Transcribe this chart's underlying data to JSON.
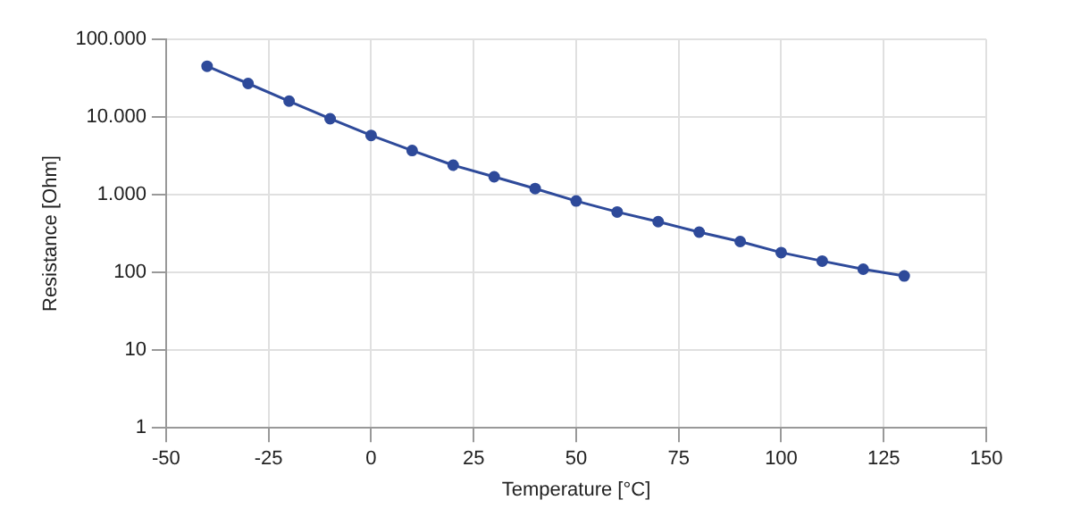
{
  "chart_data": {
    "type": "line",
    "xlabel": "Temperature [°C]",
    "ylabel": "Resistance [Ohm]",
    "x": [
      -40,
      -30,
      -20,
      -10,
      0,
      10,
      20,
      30,
      40,
      50,
      60,
      70,
      80,
      90,
      100,
      110,
      120,
      130
    ],
    "series": [
      {
        "color": "#2e4a9a",
        "values": [
          45000,
          27000,
          16000,
          9500,
          5800,
          3700,
          2400,
          1700,
          1200,
          830,
          600,
          450,
          330,
          250,
          180,
          140,
          110,
          90
        ]
      }
    ],
    "xlim": [
      -50,
      150
    ],
    "xticks": [
      -50,
      -25,
      0,
      25,
      50,
      75,
      100,
      125,
      150
    ],
    "ylim": [
      1,
      100000
    ],
    "yticks": [
      1,
      10,
      100,
      {
        "value": 1000,
        "label": "1.000"
      },
      {
        "value": 10000,
        "label": "10.000"
      },
      {
        "value": 100000,
        "label": "100.000"
      }
    ],
    "log": "y",
    "grid": true,
    "legend": false,
    "marker": "circle",
    "line_style": "solid"
  }
}
